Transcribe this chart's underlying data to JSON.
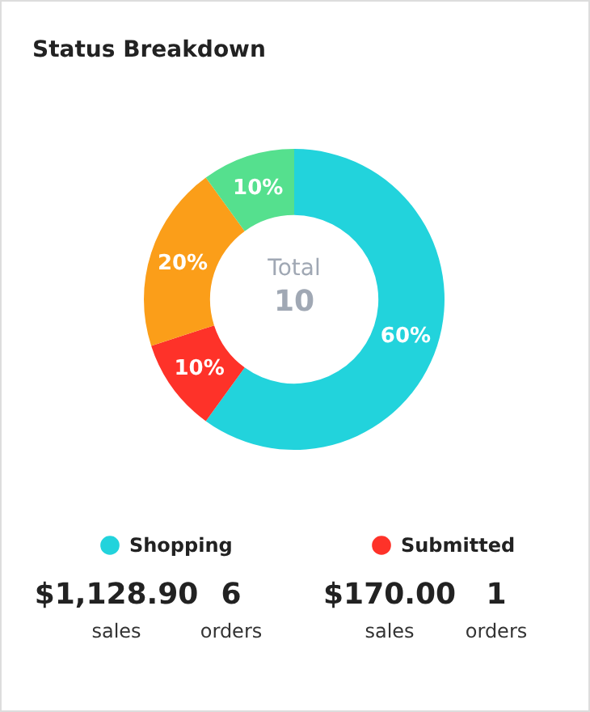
{
  "chart_data": {
    "type": "donut",
    "title": "Status Breakdown",
    "categories": [
      "Shopping",
      "Submitted",
      null,
      null
    ],
    "values": [
      60,
      10,
      20,
      10
    ],
    "colors": [
      "#22d3dc",
      "#fe3229",
      "#fb9e19",
      "#55e08e"
    ],
    "value_labels": [
      "60%",
      "10%",
      "20%",
      "10%"
    ],
    "legend": "bottom",
    "annotations": [
      "Total",
      "10",
      "$1,128.90",
      "6",
      "sales",
      "orders",
      "$170.00",
      "1",
      "sales",
      "orders"
    ]
  }
}
